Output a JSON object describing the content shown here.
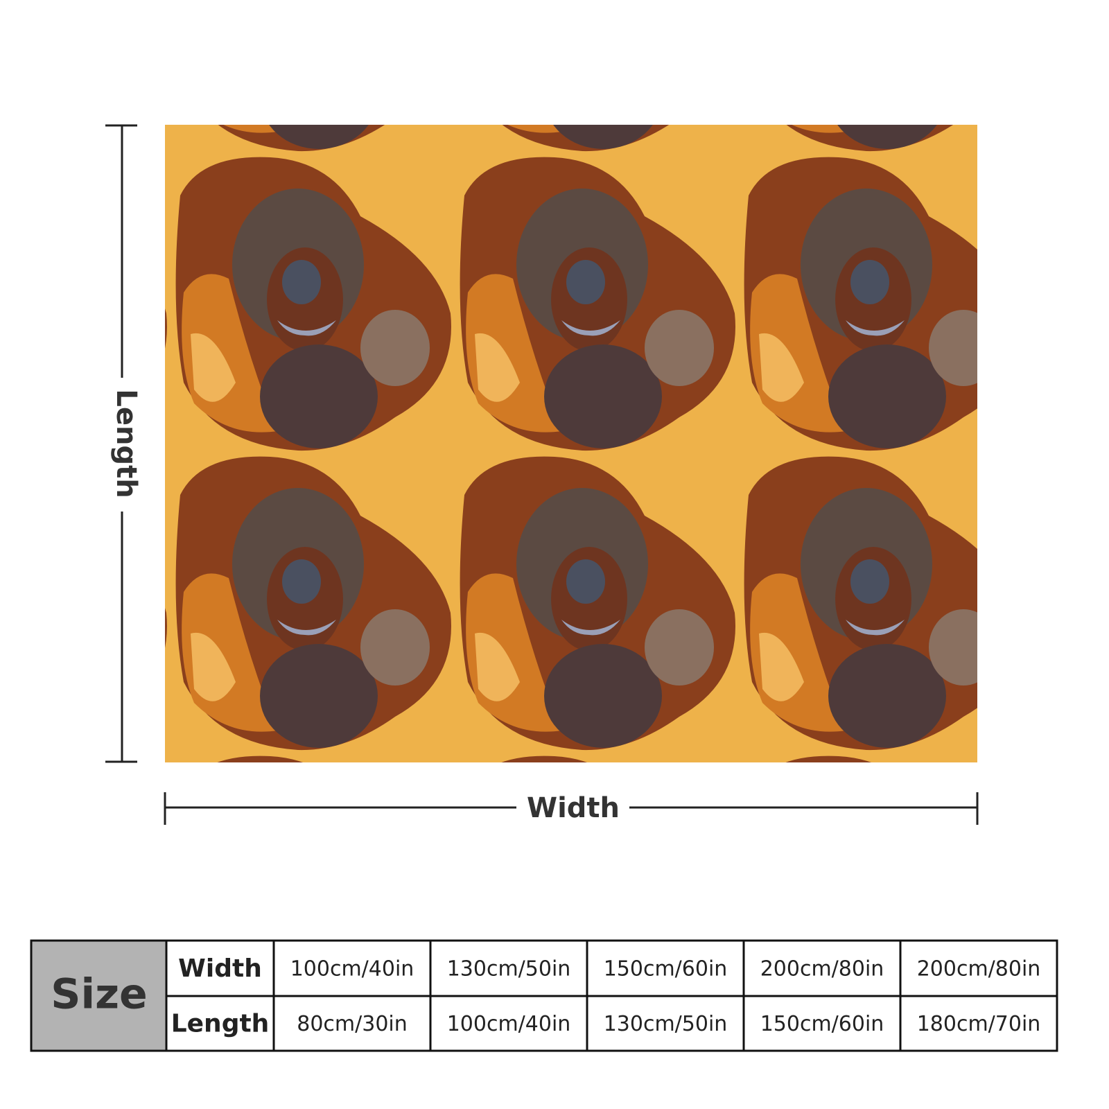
{
  "dimension_labels": {
    "length": "Length",
    "width": "Width"
  },
  "size_table": {
    "header": "Size",
    "rows": [
      {
        "label": "Width",
        "cells": [
          "100cm/40in",
          "130cm/50in",
          "150cm/60in",
          "200cm/80in",
          "200cm/80in"
        ]
      },
      {
        "label": "Length",
        "cells": [
          "80cm/30in",
          "100cm/40in",
          "130cm/50in",
          "150cm/60in",
          "180cm/70in"
        ]
      }
    ]
  }
}
